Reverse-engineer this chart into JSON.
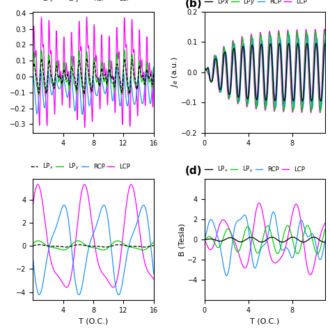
{
  "colors": {
    "LPx": "#000000",
    "LPy": "#00cc00",
    "RCP": "#1e90ff",
    "LCP": "#ff00ff"
  },
  "panel_a": {
    "xlim": [
      0,
      16
    ],
    "xticks": [
      4,
      8,
      12,
      16
    ]
  },
  "panel_b": {
    "xlim": [
      0,
      11
    ],
    "xticks": [
      0,
      4,
      8
    ],
    "ylim": [
      -0.2,
      0.2
    ],
    "yticks": [
      -0.2,
      -0.1,
      0.0,
      0.1,
      0.2
    ],
    "ylabel": "$J_e$ (a.u.)"
  },
  "panel_c": {
    "xlim": [
      0,
      16
    ],
    "xticks": [
      4,
      8,
      12,
      16
    ],
    "xlabel": "T (O.C.)"
  },
  "panel_d": {
    "xlim": [
      0,
      11
    ],
    "xticks": [
      0,
      4,
      8
    ],
    "ylim": [
      -6,
      6
    ],
    "yticks": [
      -4,
      -2,
      0,
      2,
      4
    ],
    "ylabel": "B (Tesla)",
    "xlabel": "T (O.C.)"
  }
}
